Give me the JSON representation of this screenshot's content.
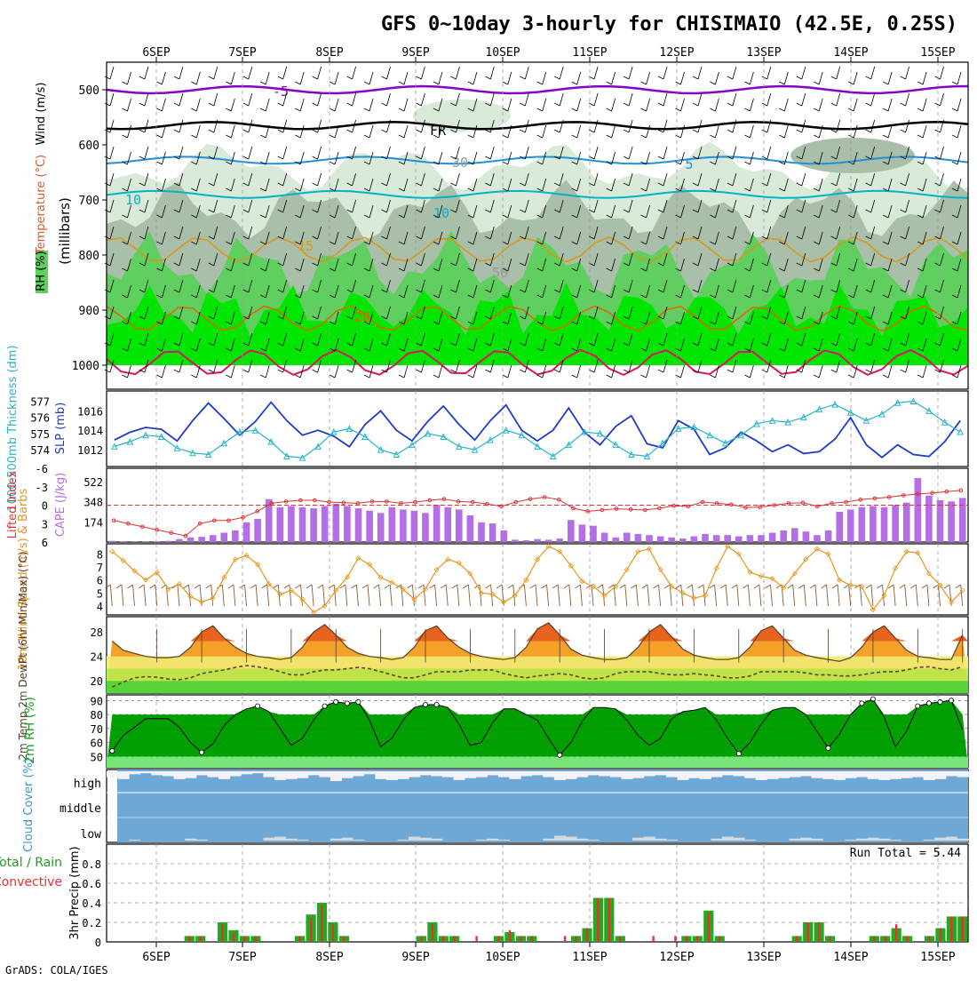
{
  "title": "GFS 0~10day 3-hourly for CHISIMAIO (42.5E, 0.25S)",
  "footer": "GrADS: COLA/IGES",
  "dates": [
    "6SEP",
    "7SEP",
    "8SEP",
    "9SEP",
    "10SEP",
    "11SEP",
    "12SEP",
    "13SEP",
    "14SEP",
    "15SEP"
  ],
  "colors": {
    "rh_light": "#d9ead9",
    "rh_mid": "#a9bfa9",
    "rh_dark": "#5fcf5f",
    "rh_bright": "#00e600",
    "temp_purple": "#8b00c8",
    "temp_black": "#000000",
    "temp_blue": "#1e90dc",
    "temp_cyan": "#00b4c8",
    "temp_orange": "#dc9614",
    "temp_darkorange": "#e06400",
    "temp_magenta": "#dc1464",
    "cape_bar": "#b46ee6",
    "lifted": "#dc3232",
    "slp": "#1e3cc8",
    "thick": "#28b4c8",
    "wind10": "#e6961e",
    "barb10": "#8c5a32",
    "cloud_bg": "#6ea8d6",
    "cloud_fill": "#f2f2f8",
    "precip_total": "#22aa22",
    "precip_conv": "#e83030"
  },
  "chart_data": [
    {
      "panel": "upper-air",
      "type": "contour",
      "ylabel": "(millibars)",
      "yticks": [
        500,
        600,
        700,
        800,
        900,
        1000
      ],
      "side_labels": [
        "RH (%)",
        "Temperature (°C)",
        "Wind (m/s)"
      ],
      "isotherm_labels": [
        "-5",
        "FR",
        "5",
        "10",
        "15",
        "20",
        "10",
        "30",
        "50"
      ],
      "temperature_levels_mb": [
        {
          "name": "-5C",
          "mb": 500
        },
        {
          "name": "0C (FR)",
          "mb": 565
        },
        {
          "name": "5C",
          "mb": 628
        },
        {
          "name": "10C",
          "mb": 690
        },
        {
          "name": "15C",
          "mb": 790
        },
        {
          "name": "20C",
          "mb": 915
        },
        {
          "name": "25C",
          "mb": 995
        }
      ]
    },
    {
      "panel": "slp-thickness",
      "type": "line",
      "ylabel_left": "1000-500mb Thickness (dm)",
      "ylabel_right": "SLP (mb)",
      "left_ticks": [
        574,
        575,
        576,
        577
      ],
      "right_ticks": [
        1012,
        1014,
        1016
      ],
      "slp_mb": [
        1013.0,
        1013.8,
        1014.3,
        1014.1,
        1012.9,
        1015.0,
        1016.8,
        1015.2,
        1013.5,
        1014.9,
        1016.9,
        1015.0,
        1013.5,
        1014.0,
        1013.4,
        1012.3,
        1014.6,
        1016.0,
        1014.0,
        1012.9,
        1014.9,
        1016.5,
        1014.6,
        1013.0,
        1015.0,
        1016.6,
        1014.0,
        1012.9,
        1014.0,
        1016.3,
        1013.8,
        1012.5,
        1014.4,
        1015.5,
        1012.6,
        1012.2,
        1015.0,
        1014.1,
        1011.5,
        1012.2,
        1013.8,
        1012.9,
        1011.8,
        1012.5,
        1011.6,
        1011.8,
        1013.1,
        1015.3,
        1012.5,
        1011.2,
        1012.5,
        1011.5,
        1011.3,
        1012.8,
        1015.0
      ],
      "thickness_dm": [
        574.2,
        574.5,
        574.9,
        574.8,
        574.1,
        573.8,
        573.7,
        574.4,
        575.1,
        575.2,
        574.5,
        573.6,
        573.5,
        574.2,
        575.1,
        575.3,
        574.8,
        574.0,
        573.7,
        574.3,
        575.0,
        574.8,
        574.2,
        574.0,
        574.6,
        575.2,
        574.9,
        574.2,
        573.6,
        574.3,
        575.1,
        575.0,
        574.3,
        573.7,
        573.6,
        574.4,
        575.3,
        575.4,
        574.9,
        574.4,
        574.9,
        575.6,
        575.8,
        575.7,
        576.0,
        576.5,
        576.8,
        576.3,
        575.8,
        576.2,
        576.9,
        577.0,
        576.4,
        575.7,
        575.1
      ]
    },
    {
      "panel": "cape-li",
      "type": "bar",
      "ylabel_left": "Lifted Index",
      "ylabel_right": "CAPE (J/kg)",
      "left_ticks": [
        "-6",
        "-3",
        "0",
        "3",
        "6"
      ],
      "right_ticks": [
        174,
        348,
        522
      ],
      "cape_jkg": [
        10,
        5,
        2,
        3,
        5,
        10,
        25,
        40,
        45,
        60,
        80,
        100,
        170,
        200,
        370,
        300,
        310,
        300,
        290,
        310,
        330,
        310,
        290,
        270,
        250,
        300,
        280,
        270,
        250,
        320,
        300,
        280,
        230,
        170,
        160,
        100,
        20,
        15,
        25,
        20,
        30,
        190,
        150,
        140,
        80,
        40,
        80,
        70,
        60,
        50,
        40,
        30,
        50,
        70,
        60,
        60,
        50,
        60,
        60,
        80,
        100,
        120,
        90,
        60,
        100,
        260,
        280,
        300,
        310,
        300,
        320,
        340,
        550,
        400,
        360,
        350,
        380
      ],
      "lifted_index": [
        2.5,
        3,
        3.5,
        4,
        4.5,
        5,
        3,
        2.5,
        2.5,
        2,
        1,
        -0.3,
        -0.6,
        -0.8,
        -0.8,
        -0.5,
        -0.4,
        -0.3,
        -0.6,
        -0.6,
        -0.3,
        -0.5,
        -0.8,
        -1.0,
        -0.6,
        -0.5,
        -0.2,
        0.2,
        -0.5,
        -1.0,
        -1.3,
        -0.9,
        0.5,
        1.0,
        0.8,
        0.6,
        0.7,
        0.8,
        0.5,
        0.1,
        0.2,
        -0.5,
        -0.3,
        -0.1,
        0.4,
        0.3,
        0,
        -0.3,
        -0.4,
        0.2,
        -0.3,
        -0.5,
        -0.9,
        -1.1,
        -1.3,
        -1.6,
        -1.8,
        -2.0,
        -2.2,
        -2.4
      ]
    },
    {
      "panel": "wind10m",
      "type": "line",
      "ylabel": "10m Wind Speed (m/s) & Barbs",
      "yticks": [
        4,
        5,
        6,
        7,
        8
      ],
      "speed_ms": [
        8.2,
        7.5,
        6.7,
        6.0,
        6.6,
        5.3,
        5.7,
        4.7,
        4.3,
        4.6,
        6.2,
        7.6,
        7.9,
        7.2,
        5.7,
        4.9,
        5.2,
        4.5,
        3.5,
        4.0,
        5.2,
        6.2,
        7.7,
        7.2,
        6.2,
        5.8,
        5.3,
        4.5,
        5.3,
        6.8,
        7.6,
        7.3,
        6.5,
        5.0,
        4.9,
        4.3,
        4.8,
        6.0,
        7.6,
        8.6,
        8.2,
        7.1,
        5.9,
        5.5,
        4.8,
        5.5,
        6.8,
        8.2,
        8.4,
        6.8,
        5.5,
        5.0,
        4.6,
        4.8,
        6.9,
        8.6,
        8.0,
        6.6,
        6.3,
        6.1,
        5.4,
        6.5,
        7.6,
        8.4,
        8.0,
        6.0,
        5.6,
        5.5,
        3.7,
        4.8,
        6.9,
        8.2,
        8.1,
        6.5,
        5.6,
        4.3,
        5.2
      ]
    },
    {
      "panel": "temp2m",
      "type": "area",
      "ylabel": "2m Temp 2m DewPt (6hr Min/Max) (°C)",
      "yticks": [
        20,
        24,
        28
      ],
      "temp_c": [
        26.5,
        25.0,
        24.5,
        24.0,
        23.8,
        23.8,
        24.0,
        25.5,
        28.0,
        29.0,
        27.0,
        25.5,
        24.5,
        24.0,
        23.8,
        23.5,
        23.8,
        25.5,
        28.0,
        29.2,
        27.5,
        25.5,
        24.5,
        24.0,
        23.8,
        23.5,
        23.8,
        25.5,
        28.2,
        29.0,
        27.0,
        25.5,
        24.5,
        24.0,
        23.7,
        23.5,
        23.8,
        25.5,
        28.5,
        29.5,
        27.5,
        25.2,
        24.2,
        23.8,
        23.5,
        23.5,
        23.8,
        25.5,
        28.0,
        29.2,
        27.2,
        25.2,
        24.2,
        23.8,
        23.5,
        23.5,
        23.8,
        25.5,
        28.2,
        29.0,
        27.0,
        25.0,
        24.2,
        23.8,
        23.5,
        23.2,
        23.8,
        25.5,
        28.0,
        29.0,
        27.0,
        25.0,
        24.0,
        23.8,
        23.5,
        23.5,
        27.5
      ],
      "dewpt_c": [
        19.0,
        19.8,
        20.5,
        20.7,
        20.6,
        20.3,
        20.2,
        20.5,
        21.2,
        21.5,
        21.8,
        22.2,
        22.5,
        22.3,
        22.0,
        21.5,
        21.0,
        21.0,
        21.5,
        21.8,
        21.8,
        22.0,
        22.2,
        22.0,
        21.5,
        21.0,
        20.5,
        20.5,
        21.0,
        21.5,
        21.5,
        21.5,
        21.8,
        21.8,
        21.8,
        21.2,
        20.8,
        20.5,
        20.8,
        21.0,
        21.2,
        21.0,
        20.5,
        20.3,
        20.5,
        21.2,
        21.5,
        21.5,
        21.5,
        21.2,
        21.0,
        21.0,
        21.2,
        21.0,
        20.8,
        20.5,
        20.5,
        20.8,
        21.5,
        21.5,
        21.5,
        21.5,
        21.3,
        21.0,
        21.0,
        20.8,
        20.8,
        21.0,
        21.3,
        21.5,
        21.5,
        21.8,
        22.2,
        22.3,
        22.0,
        21.8,
        22.3
      ]
    },
    {
      "panel": "rh2m",
      "type": "area",
      "ylabel": "2m RH (%)",
      "yticks": [
        50,
        60,
        70,
        80,
        90
      ],
      "rh_pct": [
        54,
        65,
        71,
        77,
        77,
        77,
        71,
        60,
        53,
        59,
        72,
        80,
        84,
        86,
        82,
        70,
        58,
        63,
        76,
        86,
        89,
        88,
        89,
        76,
        57,
        63,
        76,
        85,
        87,
        87,
        85,
        73,
        58,
        60,
        74,
        84,
        84,
        80,
        76,
        63,
        51,
        60,
        75,
        85,
        85,
        84,
        76,
        65,
        58,
        63,
        77,
        82,
        83,
        85,
        76,
        63,
        52,
        60,
        73,
        83,
        85,
        85,
        80,
        68,
        56,
        66,
        80,
        88,
        91,
        78,
        57,
        68,
        86,
        88,
        89,
        90,
        69
      ]
    },
    {
      "panel": "cloud",
      "type": "bar",
      "ylabel": "Cloud Cover (%)",
      "levels": [
        "high",
        "middle",
        "low"
      ],
      "high_pct": [
        30,
        40,
        15,
        10,
        20,
        25,
        40,
        35,
        20,
        30,
        40,
        25,
        15,
        10,
        30,
        45,
        40,
        35,
        20,
        30,
        50,
        35,
        25,
        15,
        40,
        45,
        40,
        30,
        20,
        25,
        30,
        45,
        35,
        30,
        20,
        30,
        40,
        25,
        20,
        30,
        45,
        40,
        30,
        20,
        25,
        30,
        40,
        35,
        25,
        20,
        30,
        45,
        35,
        40,
        30,
        20,
        25,
        35,
        45,
        40,
        35,
        30,
        25,
        35,
        40,
        45,
        35,
        30,
        40,
        45,
        40,
        35,
        30,
        45,
        40,
        25,
        30
      ],
      "low_pct": [
        0,
        0,
        5,
        0,
        0,
        0,
        0,
        10,
        5,
        0,
        0,
        0,
        0,
        0,
        15,
        20,
        10,
        5,
        0,
        0,
        10,
        15,
        5,
        0,
        0,
        0,
        5,
        20,
        15,
        10,
        0,
        0,
        0,
        5,
        10,
        5,
        0,
        0,
        0,
        10,
        25,
        20,
        10,
        5,
        0,
        0,
        0,
        15,
        20,
        10,
        5,
        0,
        0,
        0,
        10,
        20,
        15,
        5,
        0,
        0,
        0,
        10,
        15,
        10,
        0,
        0,
        5,
        10,
        15,
        10,
        5,
        0,
        0,
        5,
        15,
        20,
        10
      ]
    },
    {
      "panel": "precip",
      "type": "bar",
      "ylabel": "3hr Precip (mm)",
      "legend": [
        "Total / Rain",
        "Convective"
      ],
      "yticks": [
        0,
        0.2,
        0.4,
        0.6,
        0.8
      ],
      "run_total_label": "Run Total = ",
      "run_total": 5.44,
      "total_mm": [
        0,
        0,
        0,
        0,
        0,
        0,
        0,
        0.06,
        0.06,
        0,
        0.2,
        0.12,
        0.06,
        0.06,
        0,
        0,
        0,
        0.06,
        0.28,
        0.4,
        0.2,
        0.06,
        0,
        0,
        0,
        0,
        0,
        0,
        0.06,
        0.2,
        0.06,
        0.06,
        0,
        0,
        0,
        0.06,
        0.1,
        0.06,
        0.06,
        0,
        0,
        0,
        0.06,
        0.14,
        0.45,
        0.45,
        0.06,
        0,
        0,
        0,
        0,
        0,
        0.06,
        0.06,
        0.32,
        0.06,
        0,
        0,
        0,
        0,
        0,
        0,
        0.06,
        0.2,
        0.2,
        0.06,
        0,
        0,
        0,
        0.06,
        0.06,
        0.14,
        0.06,
        0,
        0.06,
        0.14,
        0.26,
        0.26
      ],
      "conv_mm": [
        0,
        0,
        0,
        0,
        0,
        0,
        0,
        0.06,
        0.06,
        0,
        0.18,
        0.1,
        0.06,
        0.06,
        0,
        0,
        0,
        0.06,
        0.25,
        0.38,
        0.18,
        0.06,
        0,
        0,
        0,
        0,
        0,
        0,
        0.06,
        0.18,
        0.06,
        0.06,
        0,
        0.06,
        0,
        0.06,
        0.12,
        0.06,
        0.06,
        0,
        0,
        0.06,
        0.06,
        0.14,
        0.45,
        0.45,
        0.06,
        0,
        0,
        0.06,
        0,
        0.06,
        0.06,
        0.06,
        0.3,
        0.06,
        0,
        0,
        0,
        0,
        0,
        0,
        0.06,
        0.2,
        0.2,
        0.06,
        0,
        0,
        0,
        0.06,
        0.06,
        0.18,
        0.06,
        0,
        0.06,
        0.14,
        0.26,
        0.26
      ]
    }
  ]
}
